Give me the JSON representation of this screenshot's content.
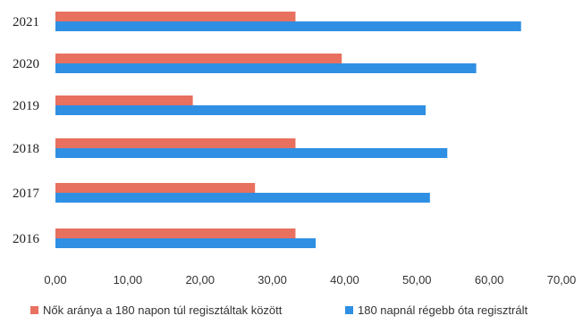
{
  "chart_data": {
    "type": "bar",
    "orientation": "horizontal",
    "categories": [
      "2016",
      "2017",
      "2018",
      "2019",
      "2020",
      "2021"
    ],
    "series": [
      {
        "name": "Nők aránya a 180 napon túl regisztáltak között",
        "color": "#e8705f",
        "values": [
          33.2,
          27.6,
          33.2,
          19.0,
          39.6,
          33.2
        ]
      },
      {
        "name": "180 napnál régebb óta regisztrált",
        "color": "#2f8fe3",
        "values": [
          36.0,
          51.8,
          54.2,
          51.2,
          58.2,
          64.4
        ]
      }
    ],
    "xlim": [
      0,
      70
    ],
    "xticks": [
      "0,00",
      "10,00",
      "20,00",
      "30,00",
      "40,00",
      "50,00",
      "60,00",
      "70,00"
    ],
    "xlabel": "",
    "ylabel": "",
    "title": "",
    "grid": false,
    "legend_position": "bottom"
  }
}
